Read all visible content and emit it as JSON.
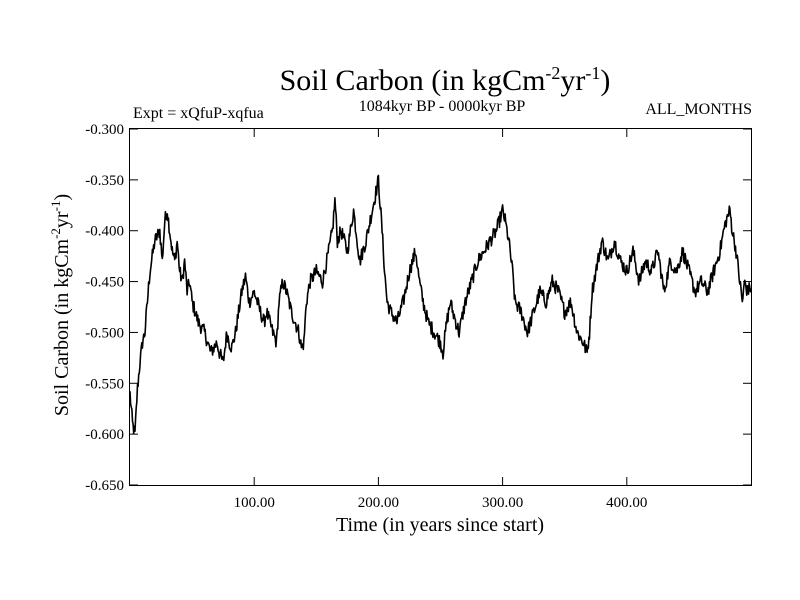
{
  "chart_data": {
    "type": "line",
    "title": {
      "base": "Soil Carbon (in kgCm",
      "sup1": "-2",
      "mid": "yr",
      "sup2": "-1",
      "end": ")"
    },
    "subtitle_left": "Expt = xQfuP-xqfua",
    "subtitle_center": "1084kyr BP - 0000kyr BP",
    "subtitle_right": "ALL_MONTHS",
    "xlabel": "Time (in years since start)",
    "ylabel": {
      "base": "Soil Carbon (in kgCm",
      "sup1": "-2",
      "mid": "yr",
      "sup2": "-1",
      "end": ")"
    },
    "xlim": [
      0,
      500
    ],
    "ylim": [
      -0.65,
      -0.3
    ],
    "x_ticks": [
      100,
      200,
      300,
      400
    ],
    "x_tick_labels": [
      "100.00",
      "200.00",
      "300.00",
      "400.00"
    ],
    "y_ticks": [
      -0.3,
      -0.35,
      -0.4,
      -0.45,
      -0.5,
      -0.55,
      -0.6,
      -0.65
    ],
    "y_tick_labels": [
      "-0.300",
      "-0.350",
      "-0.400",
      "-0.450",
      "-0.500",
      "-0.550",
      "-0.600",
      "-0.650"
    ],
    "grid": false,
    "series": [
      {
        "name": "Soil Carbon",
        "color": "#000000",
        "x": [
          0,
          2,
          4,
          6,
          8,
          10,
          12,
          14,
          16,
          20,
          24,
          26,
          28,
          30,
          32,
          34,
          36,
          38,
          40,
          42,
          44,
          46,
          48,
          50,
          55,
          60,
          65,
          70,
          72,
          75,
          78,
          80,
          82,
          85,
          90,
          93,
          96,
          100,
          105,
          108,
          110,
          115,
          118,
          120,
          123,
          126,
          130,
          133,
          136,
          138,
          140,
          142,
          145,
          150,
          155,
          160,
          163,
          165,
          167,
          170,
          175,
          180,
          185,
          190,
          195,
          200,
          203,
          205,
          207,
          210,
          215,
          220,
          225,
          230,
          233,
          236,
          240,
          245,
          250,
          252,
          255,
          258,
          260,
          265,
          270,
          275,
          280,
          285,
          290,
          295,
          300,
          302,
          305,
          308,
          310,
          315,
          320,
          325,
          330,
          335,
          340,
          345,
          350,
          355,
          360,
          365,
          368,
          370,
          372,
          375,
          380,
          385,
          390,
          395,
          400,
          405,
          410,
          415,
          420,
          425,
          430,
          435,
          440,
          445,
          450,
          455,
          460,
          465,
          470,
          475,
          478,
          480,
          483,
          485,
          488,
          490,
          493,
          495,
          497,
          500
        ],
        "values": [
          -0.56,
          -0.59,
          -0.6,
          -0.555,
          -0.53,
          -0.51,
          -0.5,
          -0.47,
          -0.44,
          -0.41,
          -0.4,
          -0.43,
          -0.39,
          -0.38,
          -0.4,
          -0.42,
          -0.43,
          -0.41,
          -0.44,
          -0.45,
          -0.43,
          -0.46,
          -0.45,
          -0.47,
          -0.49,
          -0.5,
          -0.52,
          -0.51,
          -0.52,
          -0.53,
          -0.5,
          -0.51,
          -0.515,
          -0.5,
          -0.46,
          -0.445,
          -0.47,
          -0.46,
          -0.48,
          -0.49,
          -0.48,
          -0.5,
          -0.51,
          -0.47,
          -0.45,
          -0.46,
          -0.48,
          -0.49,
          -0.5,
          -0.515,
          -0.51,
          -0.47,
          -0.45,
          -0.44,
          -0.45,
          -0.42,
          -0.4,
          -0.37,
          -0.41,
          -0.4,
          -0.42,
          -0.38,
          -0.43,
          -0.41,
          -0.38,
          -0.35,
          -0.4,
          -0.44,
          -0.47,
          -0.48,
          -0.49,
          -0.47,
          -0.44,
          -0.42,
          -0.45,
          -0.47,
          -0.49,
          -0.5,
          -0.51,
          -0.52,
          -0.49,
          -0.47,
          -0.48,
          -0.5,
          -0.47,
          -0.45,
          -0.43,
          -0.42,
          -0.41,
          -0.4,
          -0.38,
          -0.39,
          -0.41,
          -0.44,
          -0.47,
          -0.48,
          -0.5,
          -0.48,
          -0.46,
          -0.47,
          -0.45,
          -0.46,
          -0.48,
          -0.47,
          -0.5,
          -0.51,
          -0.52,
          -0.5,
          -0.46,
          -0.44,
          -0.41,
          -0.43,
          -0.41,
          -0.43,
          -0.44,
          -0.42,
          -0.45,
          -0.43,
          -0.44,
          -0.42,
          -0.46,
          -0.43,
          -0.44,
          -0.42,
          -0.44,
          -0.46,
          -0.45,
          -0.46,
          -0.44,
          -0.42,
          -0.4,
          -0.39,
          -0.38,
          -0.4,
          -0.42,
          -0.44,
          -0.47,
          -0.45,
          -0.46,
          -0.455
        ]
      }
    ]
  }
}
